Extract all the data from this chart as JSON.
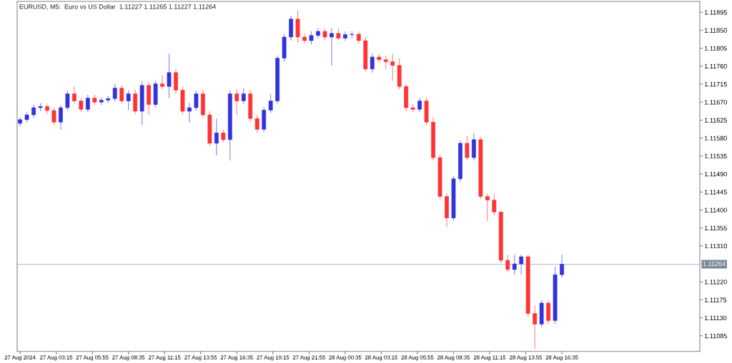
{
  "chart_data": {
    "type": "candlestick",
    "title": "EURUSD, M5:  Euro vs US Dollar  1.11227 1.11265 1.11227 1.11264",
    "x": [
      "2024-08-27T00:35",
      "2024-08-27T01:05",
      "2024-08-27T01:35",
      "2024-08-27T02:05",
      "2024-08-27T02:35",
      "2024-08-27T03:05",
      "2024-08-27T03:35",
      "2024-08-27T04:05",
      "2024-08-27T04:35",
      "2024-08-27T05:05",
      "2024-08-27T05:35",
      "2024-08-27T06:05",
      "2024-08-27T06:35",
      "2024-08-27T07:05",
      "2024-08-27T07:35",
      "2024-08-27T08:05",
      "2024-08-27T08:35",
      "2024-08-27T09:05",
      "2024-08-27T09:35",
      "2024-08-27T10:05",
      "2024-08-27T10:35",
      "2024-08-27T11:05",
      "2024-08-27T11:35",
      "2024-08-27T12:05",
      "2024-08-27T12:35",
      "2024-08-27T13:05",
      "2024-08-27T13:35",
      "2024-08-27T14:05",
      "2024-08-27T14:35",
      "2024-08-27T15:05",
      "2024-08-27T15:35",
      "2024-08-27T16:05",
      "2024-08-27T16:35",
      "2024-08-27T17:05",
      "2024-08-27T17:35",
      "2024-08-27T18:05",
      "2024-08-27T18:35",
      "2024-08-27T19:05",
      "2024-08-27T19:35",
      "2024-08-27T20:05",
      "2024-08-27T20:35",
      "2024-08-27T21:05",
      "2024-08-27T21:35",
      "2024-08-27T22:05",
      "2024-08-27T22:35",
      "2024-08-27T23:05",
      "2024-08-27T23:35",
      "2024-08-28T00:05",
      "2024-08-28T00:35",
      "2024-08-28T01:05",
      "2024-08-28T01:35",
      "2024-08-28T02:05",
      "2024-08-28T02:35",
      "2024-08-28T03:05",
      "2024-08-28T03:35",
      "2024-08-28T04:05",
      "2024-08-28T04:35",
      "2024-08-28T05:05",
      "2024-08-28T05:35",
      "2024-08-28T06:05",
      "2024-08-28T06:35",
      "2024-08-28T07:05",
      "2024-08-28T07:35",
      "2024-08-28T08:05",
      "2024-08-28T08:35",
      "2024-08-28T09:05",
      "2024-08-28T09:35",
      "2024-08-28T10:05",
      "2024-08-28T10:35",
      "2024-08-28T11:05",
      "2024-08-28T11:35",
      "2024-08-28T12:05",
      "2024-08-28T12:35",
      "2024-08-28T13:05",
      "2024-08-28T13:35",
      "2024-08-28T14:05",
      "2024-08-28T14:35",
      "2024-08-28T15:05",
      "2024-08-28T15:35",
      "2024-08-28T16:05",
      "2024-08-28T16:35"
    ],
    "ohlc": [
      [
        1.11617,
        1.11633,
        1.11609,
        1.11626
      ],
      [
        1.11626,
        1.11645,
        1.1162,
        1.11638
      ],
      [
        1.11638,
        1.11663,
        1.11631,
        1.11656
      ],
      [
        1.11656,
        1.11668,
        1.11647,
        1.11659
      ],
      [
        1.11659,
        1.11666,
        1.11641,
        1.11649
      ],
      [
        1.11649,
        1.11656,
        1.11613,
        1.1162
      ],
      [
        1.1162,
        1.11663,
        1.11601,
        1.11656
      ],
      [
        1.11656,
        1.11698,
        1.11649,
        1.11691
      ],
      [
        1.11691,
        1.11709,
        1.11666,
        1.11673
      ],
      [
        1.11673,
        1.1168,
        1.11645,
        1.11652
      ],
      [
        1.11652,
        1.11688,
        1.11645,
        1.1168
      ],
      [
        1.1168,
        1.11688,
        1.11663,
        1.1167
      ],
      [
        1.1167,
        1.11682,
        1.11663,
        1.11675
      ],
      [
        1.11675,
        1.11686,
        1.11668,
        1.11679
      ],
      [
        1.11679,
        1.11716,
        1.11672,
        1.11705
      ],
      [
        1.11705,
        1.11712,
        1.11666,
        1.11673
      ],
      [
        1.11673,
        1.117,
        1.1165,
        1.11691
      ],
      [
        1.11691,
        1.11702,
        1.1164,
        1.11647
      ],
      [
        1.11647,
        1.11723,
        1.11613,
        1.11712
      ],
      [
        1.11712,
        1.1172,
        1.11638,
        1.11664
      ],
      [
        1.11664,
        1.11723,
        1.11657,
        1.11716
      ],
      [
        1.11716,
        1.11737,
        1.11702,
        1.11709
      ],
      [
        1.11709,
        1.11791,
        1.1168,
        1.11744
      ],
      [
        1.11744,
        1.11753,
        1.11691,
        1.117
      ],
      [
        1.117,
        1.11709,
        1.1164,
        1.11647
      ],
      [
        1.11647,
        1.11668,
        1.1162,
        1.11656
      ],
      [
        1.11656,
        1.11698,
        1.11649,
        1.11691
      ],
      [
        1.11691,
        1.117,
        1.11631,
        1.11638
      ],
      [
        1.11638,
        1.11647,
        1.1156,
        1.11567
      ],
      [
        1.11567,
        1.11629,
        1.11537,
        1.11593
      ],
      [
        1.11593,
        1.11601,
        1.11569,
        1.11576
      ],
      [
        1.11576,
        1.117,
        1.11524,
        1.11691
      ],
      [
        1.11691,
        1.11702,
        1.11638,
        1.11673
      ],
      [
        1.11673,
        1.11705,
        1.11666,
        1.11691
      ],
      [
        1.11691,
        1.117,
        1.11622,
        1.11629
      ],
      [
        1.11629,
        1.11638,
        1.11593,
        1.11602
      ],
      [
        1.11602,
        1.11657,
        1.11595,
        1.1165
      ],
      [
        1.1165,
        1.11691,
        1.11643,
        1.11673
      ],
      [
        1.11673,
        1.11787,
        1.11666,
        1.1178
      ],
      [
        1.1178,
        1.1184,
        1.11771,
        1.11833
      ],
      [
        1.11833,
        1.11886,
        1.11824,
        1.11878
      ],
      [
        1.11878,
        1.11901,
        1.11819,
        1.11833
      ],
      [
        1.11833,
        1.11842,
        1.11817,
        1.11824
      ],
      [
        1.11824,
        1.11847,
        1.11815,
        1.11837
      ],
      [
        1.11837,
        1.11855,
        1.1183,
        1.11847
      ],
      [
        1.11847,
        1.11855,
        1.11824,
        1.11833
      ],
      [
        1.11833,
        1.11855,
        1.11762,
        1.11842
      ],
      [
        1.11842,
        1.11855,
        1.11824,
        1.1183
      ],
      [
        1.1183,
        1.11847,
        1.11824,
        1.11839
      ],
      [
        1.11839,
        1.11847,
        1.1183,
        1.1184
      ],
      [
        1.1184,
        1.11847,
        1.11817,
        1.11824
      ],
      [
        1.11824,
        1.11833,
        1.11746,
        1.11753
      ],
      [
        1.11753,
        1.11791,
        1.11744,
        1.11783
      ],
      [
        1.11783,
        1.11791,
        1.11769,
        1.11776
      ],
      [
        1.11776,
        1.11787,
        1.11753,
        1.11771
      ],
      [
        1.11771,
        1.11791,
        1.11723,
        1.11762
      ],
      [
        1.11762,
        1.1178,
        1.11702,
        1.11709
      ],
      [
        1.11709,
        1.11716,
        1.11647,
        1.11656
      ],
      [
        1.11656,
        1.11666,
        1.11645,
        1.11652
      ],
      [
        1.11652,
        1.1168,
        1.11645,
        1.11673
      ],
      [
        1.11673,
        1.11682,
        1.11613,
        1.1162
      ],
      [
        1.1162,
        1.11633,
        1.11524,
        1.11531
      ],
      [
        1.11531,
        1.11538,
        1.11427,
        1.11434
      ],
      [
        1.11434,
        1.11441,
        1.11357,
        1.1138
      ],
      [
        1.1138,
        1.11485,
        1.11373,
        1.11478
      ],
      [
        1.11478,
        1.11574,
        1.11471,
        1.11567
      ],
      [
        1.11567,
        1.11586,
        1.11524,
        1.11531
      ],
      [
        1.11531,
        1.11593,
        1.11524,
        1.11576
      ],
      [
        1.11576,
        1.11583,
        1.11427,
        1.11434
      ],
      [
        1.11434,
        1.11441,
        1.11373,
        1.11425
      ],
      [
        1.11425,
        1.11441,
        1.11387,
        1.11395
      ],
      [
        1.11395,
        1.11395,
        1.11267,
        1.11274
      ],
      [
        1.11274,
        1.11288,
        1.11244,
        1.11251
      ],
      [
        1.11251,
        1.11288,
        1.11238,
        1.11265
      ],
      [
        1.11265,
        1.11288,
        1.11238,
        1.11283
      ],
      [
        1.11283,
        1.11288,
        1.11133,
        1.11141
      ],
      [
        1.11141,
        1.1116,
        1.11052,
        1.11114
      ],
      [
        1.11114,
        1.11174,
        1.11107,
        1.11167
      ],
      [
        1.11167,
        1.11174,
        1.11114,
        1.11123
      ],
      [
        1.11123,
        1.11258,
        1.11114,
        1.11238
      ],
      [
        1.11238,
        1.11288,
        1.11231,
        1.11264
      ]
    ],
    "colors": [
      "#3333dd",
      "#3333dd",
      "#3333dd",
      "#3333dd",
      "#ff3333",
      "#ff3333",
      "#3333dd",
      "#3333dd",
      "#ff3333",
      "#ff3333",
      "#3333dd",
      "#ff3333",
      "#3333dd",
      "#3333dd",
      "#3333dd",
      "#ff3333",
      "#3333dd",
      "#ff3333",
      "#3333dd",
      "#ff3333",
      "#3333dd",
      "#ff3333",
      "#3333dd",
      "#ff3333",
      "#ff3333",
      "#3333dd",
      "#3333dd",
      "#ff3333",
      "#ff3333",
      "#3333dd",
      "#ff3333",
      "#3333dd",
      "#ff3333",
      "#3333dd",
      "#ff3333",
      "#ff3333",
      "#3333dd",
      "#3333dd",
      "#3333dd",
      "#3333dd",
      "#3333dd",
      "#ff3333",
      "#ff3333",
      "#3333dd",
      "#3333dd",
      "#ff3333",
      "#3333dd",
      "#ff3333",
      "#3333dd",
      "#3333dd",
      "#ff3333",
      "#ff3333",
      "#3333dd",
      "#ff3333",
      "#ff3333",
      "#ff3333",
      "#ff3333",
      "#ff3333",
      "#ff3333",
      "#3333dd",
      "#ff3333",
      "#ff3333",
      "#ff3333",
      "#ff3333",
      "#3333dd",
      "#3333dd",
      "#ff3333",
      "#3333dd",
      "#ff3333",
      "#ff3333",
      "#ff3333",
      "#ff3333",
      "#ff3333",
      "#3333dd",
      "#3333dd",
      "#ff3333",
      "#ff3333",
      "#3333dd",
      "#ff3333",
      "#3333dd",
      "#3333dd"
    ],
    "xlim": [
      "2024-08-27T00:22",
      "2024-08-29T02:46"
    ],
    "xticks": [
      {
        "value": "2024-08-27T00:35",
        "label": "27 Aug 2024"
      },
      {
        "value": "2024-08-27T03:15",
        "label": "27 Aug 03:15"
      },
      {
        "value": "2024-08-27T05:55",
        "label": "27 Aug 05:55"
      },
      {
        "value": "2024-08-27T08:35",
        "label": "27 Aug 08:35"
      },
      {
        "value": "2024-08-27T11:15",
        "label": "27 Aug 11:15"
      },
      {
        "value": "2024-08-27T13:55",
        "label": "27 Aug 13:55"
      },
      {
        "value": "2024-08-27T16:35",
        "label": "27 Aug 16:35"
      },
      {
        "value": "2024-08-27T19:15",
        "label": "27 Aug 19:15"
      },
      {
        "value": "2024-08-27T21:55",
        "label": "27 Aug 21:55"
      },
      {
        "value": "2024-08-28T00:35",
        "label": "28 Aug 00:35"
      },
      {
        "value": "2024-08-28T03:15",
        "label": "28 Aug 03:15"
      },
      {
        "value": "2024-08-28T05:55",
        "label": "28 Aug 05:55"
      },
      {
        "value": "2024-08-28T08:35",
        "label": "28 Aug 08:35"
      },
      {
        "value": "2024-08-28T11:15",
        "label": "28 Aug 11:15"
      },
      {
        "value": "2024-08-28T13:55",
        "label": "28 Aug 13:55"
      },
      {
        "value": "2024-08-28T16:35",
        "label": "28 Aug 16:35"
      }
    ],
    "ylim": [
      1.11046,
      1.11922
    ],
    "yticks": [
      {
        "value": 1.11895,
        "label": "1.11895"
      },
      {
        "value": 1.1185,
        "label": "1.11850"
      },
      {
        "value": 1.11805,
        "label": "1.11805"
      },
      {
        "value": 1.1176,
        "label": "1.11760"
      },
      {
        "value": 1.11715,
        "label": "1.11715"
      },
      {
        "value": 1.1167,
        "label": "1.11670"
      },
      {
        "value": 1.11625,
        "label": "1.11625"
      },
      {
        "value": 1.1158,
        "label": "1.11580"
      },
      {
        "value": 1.11535,
        "label": "1.11535"
      },
      {
        "value": 1.1149,
        "label": "1.11490"
      },
      {
        "value": 1.11445,
        "label": "1.11445"
      },
      {
        "value": 1.114,
        "label": "1.11400"
      },
      {
        "value": 1.11355,
        "label": "1.11355"
      },
      {
        "value": 1.1131,
        "label": "1.11310"
      },
      {
        "value": 1.1122,
        "label": "1.11220"
      },
      {
        "value": 1.11175,
        "label": "1.11175"
      },
      {
        "value": 1.1113,
        "label": "1.11130"
      },
      {
        "value": 1.11085,
        "label": "1.11085"
      }
    ],
    "ref_lines": [
      {
        "axis": "y",
        "value": 1.11264,
        "label": "1.11264",
        "color": "#c0c8d0"
      }
    ],
    "grid": false
  }
}
